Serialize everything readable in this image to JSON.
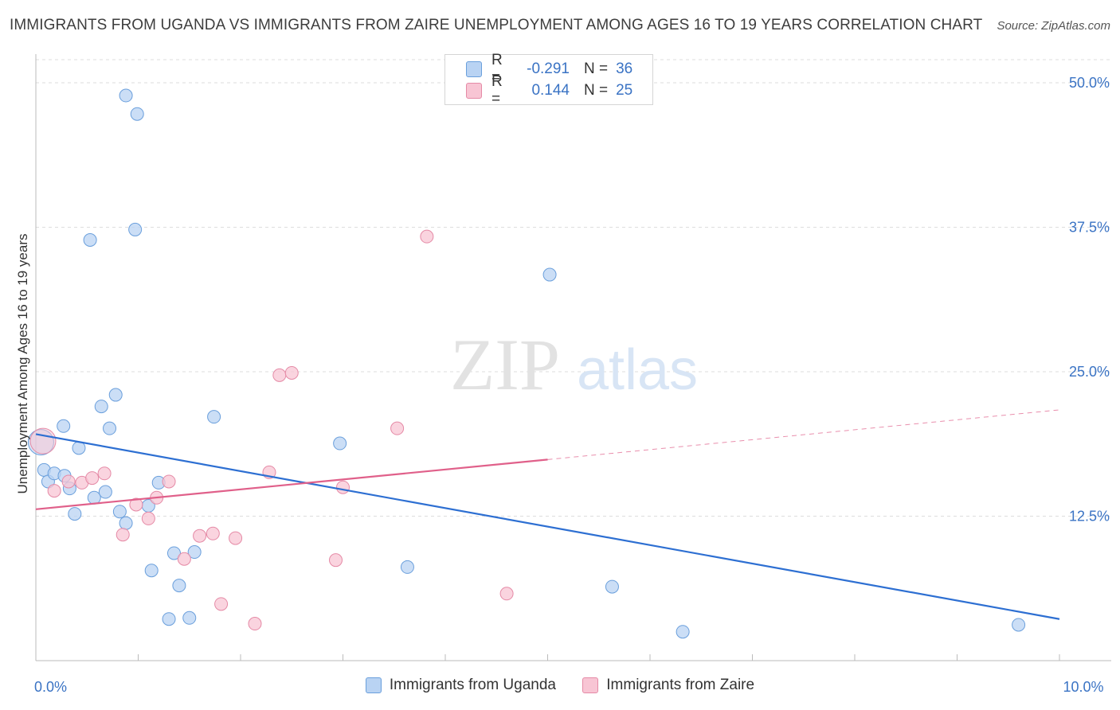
{
  "header": {
    "title": "IMMIGRANTS FROM UGANDA VS IMMIGRANTS FROM ZAIRE UNEMPLOYMENT AMONG AGES 16 TO 19 YEARS CORRELATION CHART",
    "source": "Source: ZipAtlas.com"
  },
  "watermark": {
    "zip": "ZIP",
    "atlas": "atlas"
  },
  "stats": {
    "rows": [
      {
        "r_label": "R =",
        "r_value": "-0.291",
        "n_label": "N =",
        "n_value": "36"
      },
      {
        "r_label": "R =",
        "r_value": "0.144",
        "n_label": "N =",
        "n_value": "25"
      }
    ]
  },
  "colors": {
    "uganda_fill": "#b9d3f3",
    "uganda_stroke": "#6a9fdc",
    "uganda_line": "#2d6fd2",
    "zaire_fill": "#f8c5d4",
    "zaire_stroke": "#e58aa6",
    "zaire_line": "#e0608a",
    "grid": "#dddddd",
    "tick_label": "#3a73c4"
  },
  "chart_data": {
    "type": "scatter",
    "title": "IMMIGRANTS FROM UGANDA VS IMMIGRANTS FROM ZAIRE UNEMPLOYMENT AMONG AGES 16 TO 19 YEARS CORRELATION CHART",
    "xlabel": "",
    "ylabel": "Unemployment Among Ages 16 to 19 years",
    "xlim": [
      0,
      10
    ],
    "ylim": [
      0,
      52
    ],
    "x_tick_labels": [
      {
        "value": 0,
        "label": "0.0%"
      },
      {
        "value": 10,
        "label": "10.0%"
      }
    ],
    "y_ticks": [
      {
        "value": 12.5,
        "label": "12.5%"
      },
      {
        "value": 25,
        "label": "25.0%"
      },
      {
        "value": 37.5,
        "label": "37.5%"
      },
      {
        "value": 50,
        "label": "50.0%"
      }
    ],
    "grid": "horizontal dashed",
    "legend_position": "bottom",
    "series": [
      {
        "name": "Immigrants from Uganda",
        "r": -0.291,
        "n": 36,
        "trend": {
          "x0": 0,
          "y0": 19.6,
          "x1": 10,
          "y1": 3.6
        },
        "points": [
          [
            0.05,
            18.9,
            "large"
          ],
          [
            0.08,
            16.5
          ],
          [
            0.12,
            15.5
          ],
          [
            0.18,
            16.2
          ],
          [
            0.28,
            16.0
          ],
          [
            0.33,
            14.9
          ],
          [
            0.38,
            12.7
          ],
          [
            0.27,
            20.3
          ],
          [
            0.42,
            18.4
          ],
          [
            0.53,
            36.4
          ],
          [
            0.57,
            14.1
          ],
          [
            0.64,
            22.0
          ],
          [
            0.68,
            14.6
          ],
          [
            0.72,
            20.1
          ],
          [
            0.78,
            23.0
          ],
          [
            0.82,
            12.9
          ],
          [
            0.88,
            11.9
          ],
          [
            0.88,
            48.9
          ],
          [
            0.99,
            47.3
          ],
          [
            0.97,
            37.3
          ],
          [
            1.1,
            13.4
          ],
          [
            1.13,
            7.8
          ],
          [
            1.2,
            15.4
          ],
          [
            1.3,
            3.6
          ],
          [
            1.35,
            9.3
          ],
          [
            1.4,
            6.5
          ],
          [
            1.5,
            3.7
          ],
          [
            1.55,
            9.4
          ],
          [
            1.74,
            21.1
          ],
          [
            2.97,
            18.8
          ],
          [
            3.63,
            8.1
          ],
          [
            5.02,
            33.4
          ],
          [
            5.63,
            6.4
          ],
          [
            6.32,
            2.5
          ],
          [
            9.6,
            3.1
          ]
        ]
      },
      {
        "name": "Immigrants from Zaire",
        "r": 0.144,
        "n": 25,
        "trend": {
          "x0": 0,
          "y0": 13.1,
          "x1": 5.0,
          "y1": 17.4,
          "dash_x1": 10,
          "dash_y1": 21.7
        },
        "points": [
          [
            0.07,
            19.0,
            "large"
          ],
          [
            0.18,
            14.7
          ],
          [
            0.32,
            15.5
          ],
          [
            0.45,
            15.4
          ],
          [
            0.55,
            15.8
          ],
          [
            0.67,
            16.2
          ],
          [
            0.85,
            10.9
          ],
          [
            0.98,
            13.5
          ],
          [
            1.1,
            12.3
          ],
          [
            1.18,
            14.1
          ],
          [
            1.3,
            15.5
          ],
          [
            1.45,
            8.8
          ],
          [
            1.6,
            10.8
          ],
          [
            1.73,
            11.0
          ],
          [
            1.81,
            4.9
          ],
          [
            1.95,
            10.6
          ],
          [
            2.14,
            3.2
          ],
          [
            2.28,
            16.3
          ],
          [
            2.38,
            24.7
          ],
          [
            2.5,
            24.9
          ],
          [
            2.93,
            8.7
          ],
          [
            3.0,
            15.0
          ],
          [
            3.53,
            20.1
          ],
          [
            3.82,
            36.7
          ],
          [
            4.6,
            5.8
          ]
        ]
      }
    ]
  }
}
